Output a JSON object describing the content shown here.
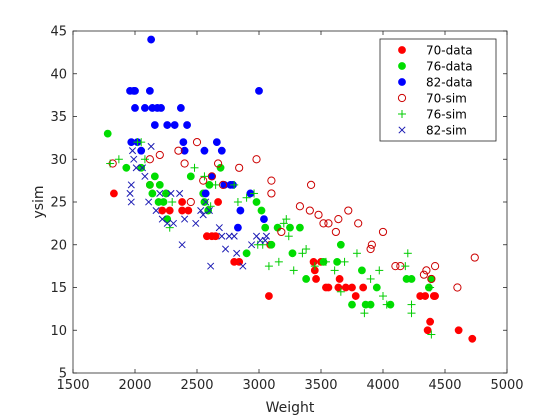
{
  "chart_data": {
    "type": "scatter",
    "title": "",
    "xlabel": "Weight",
    "ylabel": "ysim",
    "xlim": [
      1500,
      5000
    ],
    "ylim": [
      5,
      45
    ],
    "xticks": [
      "1500",
      "2000",
      "2500",
      "3000",
      "3500",
      "4000",
      "4500",
      "5000"
    ],
    "yticks": [
      "5",
      "10",
      "15",
      "20",
      "25",
      "30",
      "35",
      "40",
      "45"
    ],
    "grid": false,
    "legend_position": "top-right",
    "series": [
      {
        "name": "70-data",
        "marker": "filled-circle",
        "color": "#ff0000",
        "points": [
          [
            1830,
            26
          ],
          [
            2120,
            27
          ],
          [
            2220,
            24
          ],
          [
            2280,
            24
          ],
          [
            2380,
            25
          ],
          [
            2380,
            24
          ],
          [
            2430,
            24
          ],
          [
            2580,
            21
          ],
          [
            2620,
            21
          ],
          [
            2650,
            21
          ],
          [
            2670,
            25
          ],
          [
            2800,
            18
          ],
          [
            2840,
            18
          ],
          [
            3080,
            14
          ],
          [
            3090,
            20
          ],
          [
            3440,
            18
          ],
          [
            3450,
            17
          ],
          [
            3460,
            16
          ],
          [
            3500,
            18
          ],
          [
            3540,
            15
          ],
          [
            3560,
            15
          ],
          [
            3640,
            15
          ],
          [
            3650,
            16
          ],
          [
            3700,
            15
          ],
          [
            3750,
            15
          ],
          [
            3780,
            14
          ],
          [
            3840,
            15
          ],
          [
            4300,
            14
          ],
          [
            4340,
            14
          ],
          [
            4360,
            10
          ],
          [
            4380,
            11
          ],
          [
            4410,
            14
          ],
          [
            4420,
            14
          ],
          [
            4610,
            10
          ],
          [
            4720,
            9
          ]
        ]
      },
      {
        "name": "76-data",
        "marker": "filled-circle",
        "color": "#00dd00",
        "points": [
          [
            1780,
            33
          ],
          [
            1930,
            29
          ],
          [
            2050,
            29
          ],
          [
            2120,
            27
          ],
          [
            2140,
            26
          ],
          [
            2160,
            28
          ],
          [
            2190,
            25
          ],
          [
            2200,
            27
          ],
          [
            2230,
            25
          ],
          [
            2250,
            26
          ],
          [
            2260,
            23
          ],
          [
            2450,
            28
          ],
          [
            2550,
            26
          ],
          [
            2560,
            25
          ],
          [
            2590,
            24
          ],
          [
            2600,
            27
          ],
          [
            2690,
            29
          ],
          [
            2900,
            19
          ],
          [
            2980,
            25
          ],
          [
            3020,
            24
          ],
          [
            3050,
            22
          ],
          [
            3100,
            20
          ],
          [
            3150,
            22
          ],
          [
            3250,
            22
          ],
          [
            3270,
            19
          ],
          [
            3330,
            22
          ],
          [
            3380,
            16
          ],
          [
            3520,
            18
          ],
          [
            3630,
            18
          ],
          [
            3660,
            20
          ],
          [
            3750,
            13
          ],
          [
            3830,
            17
          ],
          [
            3860,
            13
          ],
          [
            3900,
            13
          ],
          [
            3950,
            15
          ],
          [
            4060,
            13
          ],
          [
            4190,
            16
          ],
          [
            4230,
            16
          ],
          [
            4370,
            15
          ],
          [
            4390,
            16
          ]
        ]
      },
      {
        "name": "82-data",
        "marker": "filled-circle",
        "color": "#0000ff",
        "points": [
          [
            1970,
            32
          ],
          [
            1960,
            38
          ],
          [
            1990,
            38
          ],
          [
            2000,
            38
          ],
          [
            2000,
            36
          ],
          [
            2020,
            32
          ],
          [
            2050,
            31
          ],
          [
            2080,
            36
          ],
          [
            2120,
            38
          ],
          [
            2130,
            44
          ],
          [
            2140,
            36
          ],
          [
            2160,
            34
          ],
          [
            2180,
            36
          ],
          [
            2210,
            36
          ],
          [
            2260,
            34
          ],
          [
            2320,
            34
          ],
          [
            2370,
            36
          ],
          [
            2390,
            32
          ],
          [
            2400,
            31
          ],
          [
            2420,
            34
          ],
          [
            2560,
            31
          ],
          [
            2570,
            26
          ],
          [
            2620,
            28
          ],
          [
            2660,
            32
          ],
          [
            2700,
            31
          ],
          [
            2720,
            27
          ],
          [
            2770,
            27
          ],
          [
            2790,
            27
          ],
          [
            2830,
            22
          ],
          [
            2850,
            24
          ],
          [
            2930,
            26
          ],
          [
            3000,
            38
          ],
          [
            3040,
            23
          ]
        ]
      },
      {
        "name": "70-sim",
        "marker": "open-circle",
        "color": "#cc0000",
        "points": [
          [
            1820,
            29.5
          ],
          [
            2120,
            30
          ],
          [
            2200,
            30.5
          ],
          [
            2350,
            31
          ],
          [
            2400,
            29.5
          ],
          [
            2450,
            25
          ],
          [
            2500,
            32
          ],
          [
            2550,
            27.5
          ],
          [
            2620,
            28
          ],
          [
            2670,
            29.5
          ],
          [
            2710,
            27
          ],
          [
            2840,
            29
          ],
          [
            2980,
            30
          ],
          [
            3100,
            27.5
          ],
          [
            3100,
            26
          ],
          [
            3180,
            21.5
          ],
          [
            3330,
            24.5
          ],
          [
            3410,
            24
          ],
          [
            3420,
            27
          ],
          [
            3480,
            23.5
          ],
          [
            3520,
            22.5
          ],
          [
            3560,
            22.5
          ],
          [
            3620,
            21.5
          ],
          [
            3640,
            23
          ],
          [
            3720,
            24
          ],
          [
            3800,
            22.5
          ],
          [
            3900,
            19.5
          ],
          [
            3910,
            20
          ],
          [
            4000,
            21.5
          ],
          [
            4100,
            17.5
          ],
          [
            4140,
            17.5
          ],
          [
            4330,
            16.5
          ],
          [
            4350,
            17
          ],
          [
            4390,
            16
          ],
          [
            4420,
            17.5
          ],
          [
            4600,
            15
          ],
          [
            4740,
            18.5
          ]
        ]
      },
      {
        "name": "76-sim",
        "marker": "plus",
        "color": "#00cc00",
        "points": [
          [
            1800,
            29.5
          ],
          [
            1870,
            30
          ],
          [
            2020,
            32
          ],
          [
            2050,
            32
          ],
          [
            2080,
            30
          ],
          [
            2250,
            26
          ],
          [
            2280,
            22
          ],
          [
            2300,
            25
          ],
          [
            2480,
            29
          ],
          [
            2560,
            28
          ],
          [
            2610,
            24.5
          ],
          [
            2650,
            27
          ],
          [
            2800,
            27
          ],
          [
            2830,
            25
          ],
          [
            2900,
            25.5
          ],
          [
            2960,
            26
          ],
          [
            2990,
            20
          ],
          [
            3030,
            20
          ],
          [
            3080,
            17.5
          ],
          [
            3160,
            18
          ],
          [
            3200,
            22.5
          ],
          [
            3220,
            23
          ],
          [
            3240,
            21
          ],
          [
            3280,
            17
          ],
          [
            3350,
            19
          ],
          [
            3380,
            19.5
          ],
          [
            3450,
            17.5
          ],
          [
            3540,
            18
          ],
          [
            3610,
            17
          ],
          [
            3660,
            14.5
          ],
          [
            3690,
            18
          ],
          [
            3790,
            19
          ],
          [
            3850,
            12
          ],
          [
            3900,
            16
          ],
          [
            3970,
            17
          ],
          [
            4000,
            14
          ],
          [
            4030,
            13
          ],
          [
            4180,
            17.5
          ],
          [
            4200,
            19
          ],
          [
            4230,
            13
          ],
          [
            4230,
            12
          ],
          [
            4380,
            15
          ],
          [
            4390,
            9.5
          ]
        ]
      },
      {
        "name": "82-sim",
        "marker": "cross",
        "color": "#1a1ab3",
        "points": [
          [
            1960,
            26
          ],
          [
            1970,
            25
          ],
          [
            1970,
            27
          ],
          [
            1980,
            31
          ],
          [
            1990,
            30
          ],
          [
            2010,
            29
          ],
          [
            2060,
            29
          ],
          [
            2080,
            28
          ],
          [
            2110,
            25
          ],
          [
            2130,
            31.5
          ],
          [
            2170,
            24
          ],
          [
            2200,
            26
          ],
          [
            2220,
            23
          ],
          [
            2260,
            22.5
          ],
          [
            2290,
            26
          ],
          [
            2310,
            22.5
          ],
          [
            2360,
            26
          ],
          [
            2380,
            20
          ],
          [
            2400,
            23
          ],
          [
            2490,
            22.5
          ],
          [
            2530,
            24
          ],
          [
            2550,
            23.5
          ],
          [
            2570,
            25
          ],
          [
            2600,
            24
          ],
          [
            2610,
            17.5
          ],
          [
            2680,
            22
          ],
          [
            2700,
            21
          ],
          [
            2730,
            19.5
          ],
          [
            2760,
            21
          ],
          [
            2800,
            21
          ],
          [
            2820,
            19
          ],
          [
            2870,
            17.5
          ],
          [
            2940,
            20
          ],
          [
            2980,
            21
          ],
          [
            3010,
            20.5
          ],
          [
            3050,
            20.5
          ],
          [
            3060,
            21
          ]
        ]
      }
    ]
  }
}
